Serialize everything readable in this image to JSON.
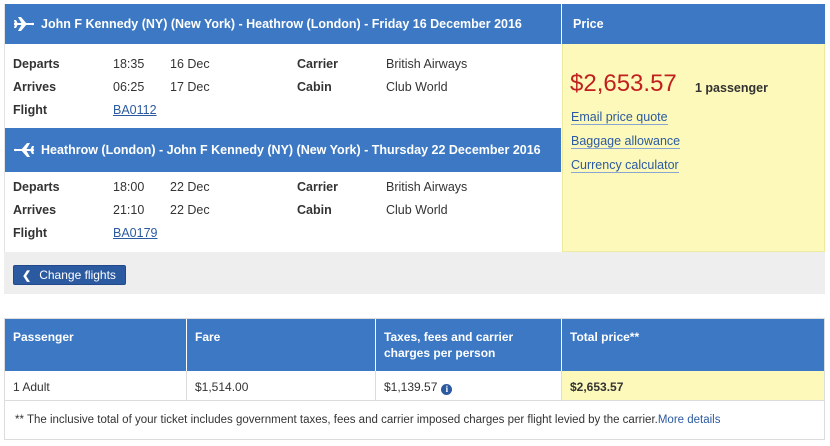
{
  "outbound": {
    "title": "John F Kennedy (NY) (New York) - Heathrow (London) - Friday 16 December 2016",
    "plane_icon": "plane-right-icon",
    "departs_label": "Departs",
    "departs_time": "18:35",
    "departs_date": "16 Dec",
    "arrives_label": "Arrives",
    "arrives_time": "06:25",
    "arrives_date": "17 Dec",
    "flight_label": "Flight",
    "flight_number": "BA0112",
    "carrier_label": "Carrier",
    "carrier_value": "British Airways",
    "cabin_label": "Cabin",
    "cabin_value": "Club World"
  },
  "inbound": {
    "title": "Heathrow (London) - John F Kennedy (NY) (New York) - Thursday 22 December 2016",
    "plane_icon": "plane-left-icon",
    "departs_label": "Departs",
    "departs_time": "18:00",
    "departs_date": "22 Dec",
    "arrives_label": "Arrives",
    "arrives_time": "21:10",
    "arrives_date": "22 Dec",
    "flight_label": "Flight",
    "flight_number": "BA0179",
    "carrier_label": "Carrier",
    "carrier_value": "British Airways",
    "cabin_label": "Cabin",
    "cabin_value": "Club World"
  },
  "price_panel": {
    "heading": "Price",
    "total": "$2,653.57",
    "passengers": "1 passenger",
    "links": [
      "Email price quote",
      "Baggage allowance",
      "Currency calculator"
    ]
  },
  "change_flights": {
    "label": "Change flights",
    "icon": "chevron-left-icon"
  },
  "fare_table": {
    "headers": [
      "Passenger",
      "Fare",
      "Taxes, fees and carrier charges per person",
      "Total price**"
    ],
    "header_line1_taxes": "Taxes, fees and carrier",
    "header_line2_taxes": "charges per person",
    "row": {
      "passenger": "1 Adult",
      "fare": "$1,514.00",
      "taxes": "$1,139.57",
      "total": "$2,653.57"
    },
    "info_icon": "info-icon",
    "footnote": "** The inclusive total of your ticket includes government taxes, fees and carrier imposed charges per flight levied by the carrier.",
    "more_details": "More details"
  },
  "colors": {
    "header_blue": "#3c78c3",
    "link_blue": "#2c5aa0",
    "price_red": "#c2201f",
    "price_panel_bg": "#fcf9ba",
    "bar_grey": "#eeeeee"
  }
}
